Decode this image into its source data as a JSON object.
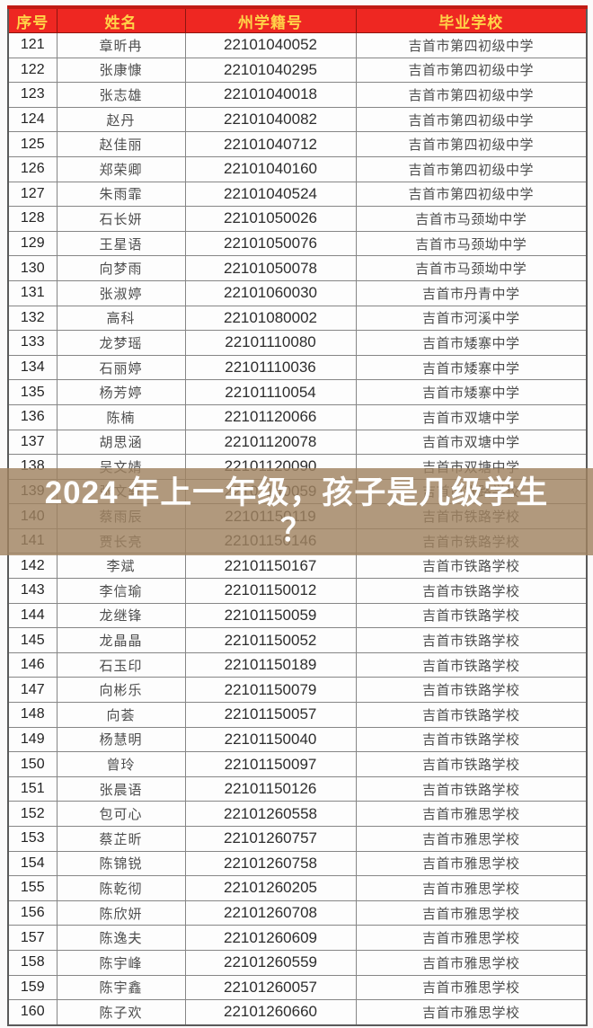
{
  "colors": {
    "header_bg": "#ee2722",
    "header_text": "#ffd348",
    "header_top_border": "#c01a13",
    "overlay_bg": "rgba(160,130,96,0.82)",
    "overlay_text": "#ffffff",
    "body_text": "#4d4d4d"
  },
  "overlay": {
    "line1": "2024 年上一年级，孩子是几级学生",
    "line2": "？"
  },
  "table": {
    "columns": [
      "序号",
      "姓名",
      "州学籍号",
      "毕业学校"
    ],
    "rows": [
      {
        "no": "121",
        "name": "章昕冉",
        "id": "22101040052",
        "school": "吉首市第四初级中学"
      },
      {
        "no": "122",
        "name": "张康慷",
        "id": "22101040295",
        "school": "吉首市第四初级中学"
      },
      {
        "no": "123",
        "name": "张志雄",
        "id": "22101040018",
        "school": "吉首市第四初级中学"
      },
      {
        "no": "124",
        "name": "赵丹",
        "id": "22101040082",
        "school": "吉首市第四初级中学"
      },
      {
        "no": "125",
        "name": "赵佳丽",
        "id": "22101040712",
        "school": "吉首市第四初级中学"
      },
      {
        "no": "126",
        "name": "郑荣卿",
        "id": "22101040160",
        "school": "吉首市第四初级中学"
      },
      {
        "no": "127",
        "name": "朱雨霏",
        "id": "22101040524",
        "school": "吉首市第四初级中学"
      },
      {
        "no": "128",
        "name": "石长妍",
        "id": "22101050026",
        "school": "吉首市马颈坳中学"
      },
      {
        "no": "129",
        "name": "王星语",
        "id": "22101050076",
        "school": "吉首市马颈坳中学"
      },
      {
        "no": "130",
        "name": "向梦雨",
        "id": "22101050078",
        "school": "吉首市马颈坳中学"
      },
      {
        "no": "131",
        "name": "张淑婷",
        "id": "22101060030",
        "school": "吉首市丹青中学"
      },
      {
        "no": "132",
        "name": "高科",
        "id": "22101080002",
        "school": "吉首市河溪中学"
      },
      {
        "no": "133",
        "name": "龙梦瑶",
        "id": "22101110080",
        "school": "吉首市矮寨中学"
      },
      {
        "no": "134",
        "name": "石丽婷",
        "id": "22101110036",
        "school": "吉首市矮寨中学"
      },
      {
        "no": "135",
        "name": "杨芳婷",
        "id": "22101110054",
        "school": "吉首市矮寨中学"
      },
      {
        "no": "136",
        "name": "陈楠",
        "id": "22101120066",
        "school": "吉首市双塘中学"
      },
      {
        "no": "137",
        "name": "胡思涵",
        "id": "22101120078",
        "school": "吉首市双塘中学"
      },
      {
        "no": "138",
        "name": "吴文婧",
        "id": "22101120090",
        "school": "吉首市双塘中学"
      },
      {
        "no": "139",
        "name": "张文轩",
        "id": "22101140059",
        "school": "吉首市铁路学校"
      },
      {
        "no": "140",
        "name": "蔡雨辰",
        "id": "22101150119",
        "school": "吉首市铁路学校"
      },
      {
        "no": "141",
        "name": "贾长亮",
        "id": "22101150146",
        "school": "吉首市铁路学校"
      },
      {
        "no": "142",
        "name": "李斌",
        "id": "22101150167",
        "school": "吉首市铁路学校"
      },
      {
        "no": "143",
        "name": "李信瑜",
        "id": "22101150012",
        "school": "吉首市铁路学校"
      },
      {
        "no": "144",
        "name": "龙继锋",
        "id": "22101150059",
        "school": "吉首市铁路学校"
      },
      {
        "no": "145",
        "name": "龙晶晶",
        "id": "22101150052",
        "school": "吉首市铁路学校"
      },
      {
        "no": "146",
        "name": "石玉印",
        "id": "22101150189",
        "school": "吉首市铁路学校"
      },
      {
        "no": "147",
        "name": "向彬乐",
        "id": "22101150079",
        "school": "吉首市铁路学校"
      },
      {
        "no": "148",
        "name": "向荟",
        "id": "22101150057",
        "school": "吉首市铁路学校"
      },
      {
        "no": "149",
        "name": "杨慧明",
        "id": "22101150040",
        "school": "吉首市铁路学校"
      },
      {
        "no": "150",
        "name": "曾玲",
        "id": "22101150097",
        "school": "吉首市铁路学校"
      },
      {
        "no": "151",
        "name": "张晨语",
        "id": "22101150126",
        "school": "吉首市铁路学校"
      },
      {
        "no": "152",
        "name": "包可心",
        "id": "22101260558",
        "school": "吉首市雅思学校"
      },
      {
        "no": "153",
        "name": "蔡芷昕",
        "id": "22101260757",
        "school": "吉首市雅思学校"
      },
      {
        "no": "154",
        "name": "陈锦锐",
        "id": "22101260758",
        "school": "吉首市雅思学校"
      },
      {
        "no": "155",
        "name": "陈乾彻",
        "id": "22101260205",
        "school": "吉首市雅思学校"
      },
      {
        "no": "156",
        "name": "陈欣妍",
        "id": "22101260708",
        "school": "吉首市雅思学校"
      },
      {
        "no": "157",
        "name": "陈逸夫",
        "id": "22101260609",
        "school": "吉首市雅思学校"
      },
      {
        "no": "158",
        "name": "陈宇峰",
        "id": "22101260559",
        "school": "吉首市雅思学校"
      },
      {
        "no": "159",
        "name": "陈宇鑫",
        "id": "22101260057",
        "school": "吉首市雅思学校"
      },
      {
        "no": "160",
        "name": "陈子欢",
        "id": "22101260660",
        "school": "吉首市雅思学校"
      }
    ]
  }
}
